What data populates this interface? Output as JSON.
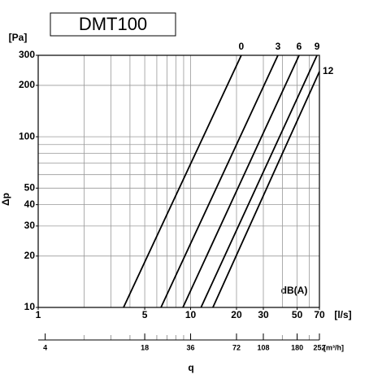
{
  "chart_data": {
    "type": "line",
    "title": "DMT100",
    "y_unit": "[Pa]",
    "y_label": "Δp",
    "x_unit": "[l/s]",
    "x_label": "q",
    "x2_unit": "[m³/h]",
    "annotation": "dB(A)",
    "xlog": true,
    "ylog": true,
    "color": "#000000",
    "xlim": [
      1,
      70
    ],
    "xticks": [
      1,
      5,
      10,
      20,
      30,
      50,
      70
    ],
    "xgrid": [
      2,
      3,
      4,
      5,
      6,
      7,
      8,
      9,
      10,
      20,
      30,
      40,
      50,
      60
    ],
    "ylim": [
      10,
      300
    ],
    "yticks": [
      10,
      20,
      30,
      40,
      50,
      100,
      200,
      300
    ],
    "ygrid": [
      20,
      30,
      40,
      50,
      60,
      70,
      80,
      90,
      100,
      200
    ],
    "x2lim": [
      3.6,
      252
    ],
    "x2ticks": [
      4,
      18,
      36,
      72,
      108,
      180,
      252
    ],
    "series": [
      {
        "name": "0",
        "x": [
          3.63,
          21.5
        ],
        "values": [
          10,
          300
        ]
      },
      {
        "name": "3",
        "x": [
          6.39,
          37.4
        ],
        "values": [
          10,
          300
        ]
      },
      {
        "name": "6",
        "x": [
          8.9,
          51.5
        ],
        "values": [
          10,
          300
        ]
      },
      {
        "name": "9",
        "x": [
          11.7,
          67.5
        ],
        "values": [
          10,
          300
        ]
      },
      {
        "name": "12",
        "x": [
          14.0,
          70
        ],
        "values": [
          10,
          241
        ]
      }
    ]
  }
}
